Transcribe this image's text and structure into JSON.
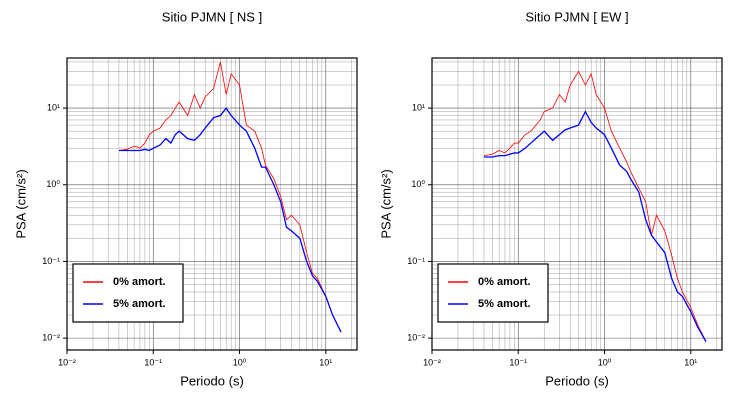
{
  "chart_data": [
    {
      "type": "line",
      "title": "Sitio PJMN [ NS ]",
      "x_label": "Periodo (s)",
      "y_label": "PSA (cm/s²)",
      "log_x": true,
      "log_y": true,
      "grid": true,
      "legend": "lower left",
      "xlim": [
        0.01,
        23
      ],
      "ylim": [
        0.007,
        45
      ],
      "xticks": [
        {
          "value": 0.01,
          "label": "10⁻²"
        },
        {
          "value": 0.1,
          "label": "10⁻¹"
        },
        {
          "value": 1,
          "label": "10⁰"
        },
        {
          "value": 10,
          "label": "10¹"
        }
      ],
      "yticks": [
        {
          "value": 0.01,
          "label": "10⁻²"
        },
        {
          "value": 0.1,
          "label": "10⁻¹"
        },
        {
          "value": 1,
          "label": "10⁰"
        },
        {
          "value": 10,
          "label": "10¹"
        }
      ],
      "x": [
        0.04,
        0.05,
        0.06,
        0.07,
        0.08,
        0.09,
        0.1,
        0.12,
        0.14,
        0.16,
        0.18,
        0.2,
        0.25,
        0.3,
        0.35,
        0.4,
        0.5,
        0.6,
        0.7,
        0.8,
        1.0,
        1.2,
        1.5,
        1.8,
        2.0,
        2.5,
        3,
        3.5,
        4,
        5,
        6,
        7,
        8,
        10,
        12,
        15
      ],
      "series": [
        {
          "name": "0% amort.",
          "color": "#ff0000",
          "values": [
            2.8,
            2.9,
            3.2,
            3.0,
            3.5,
            4.5,
            5,
            5.5,
            7,
            8,
            10,
            12,
            8,
            15,
            10,
            14,
            18,
            40,
            15,
            28,
            20,
            6,
            5,
            3,
            1.8,
            1.2,
            0.7,
            0.35,
            0.4,
            0.3,
            0.13,
            0.07,
            0.06,
            0.035,
            0.02,
            0.012
          ]
        },
        {
          "name": "5% amort.",
          "color": "#0000ff",
          "values": [
            2.8,
            2.8,
            2.8,
            2.8,
            2.9,
            2.8,
            3.0,
            3.3,
            4.0,
            3.5,
            4.5,
            5.0,
            4.0,
            3.8,
            4.5,
            5.5,
            7.5,
            8,
            10,
            8,
            6,
            5,
            3,
            1.7,
            1.7,
            1.0,
            0.6,
            0.28,
            0.25,
            0.2,
            0.1,
            0.065,
            0.055,
            0.035,
            0.02,
            0.012
          ]
        }
      ]
    },
    {
      "type": "line",
      "title": "Sitio PJMN [ EW ]",
      "x_label": "Periodo (s)",
      "y_label": "PSA (cm/s²)",
      "log_x": true,
      "log_y": true,
      "grid": true,
      "legend": "lower left",
      "xlim": [
        0.01,
        23
      ],
      "ylim": [
        0.007,
        45
      ],
      "xticks": [
        {
          "value": 0.01,
          "label": "10⁻²"
        },
        {
          "value": 0.1,
          "label": "10⁻¹"
        },
        {
          "value": 1,
          "label": "10⁰"
        },
        {
          "value": 10,
          "label": "10¹"
        }
      ],
      "yticks": [
        {
          "value": 0.01,
          "label": "10⁻²"
        },
        {
          "value": 0.1,
          "label": "10⁻¹"
        },
        {
          "value": 1,
          "label": "10⁰"
        },
        {
          "value": 10,
          "label": "10¹"
        }
      ],
      "x": [
        0.04,
        0.05,
        0.06,
        0.07,
        0.08,
        0.09,
        0.1,
        0.12,
        0.14,
        0.16,
        0.18,
        0.2,
        0.25,
        0.3,
        0.35,
        0.4,
        0.5,
        0.6,
        0.7,
        0.8,
        1.0,
        1.2,
        1.5,
        1.8,
        2.0,
        2.5,
        3,
        3.5,
        4,
        5,
        6,
        7,
        8,
        10,
        12,
        15
      ],
      "series": [
        {
          "name": "0% amort.",
          "color": "#ff0000",
          "values": [
            2.4,
            2.5,
            2.8,
            2.6,
            3,
            3.5,
            3.5,
            4.5,
            5,
            6,
            7,
            9,
            10,
            15,
            12,
            20,
            30,
            20,
            28,
            15,
            10,
            5,
            3,
            2,
            1.5,
            0.9,
            0.6,
            0.22,
            0.4,
            0.25,
            0.12,
            0.06,
            0.04,
            0.025,
            0.015,
            0.009
          ]
        },
        {
          "name": "5% amort.",
          "color": "#0000ff",
          "values": [
            2.3,
            2.3,
            2.4,
            2.4,
            2.5,
            2.6,
            2.6,
            3.0,
            3.5,
            4,
            4.5,
            5,
            3.8,
            4.5,
            5.2,
            5.5,
            6,
            9,
            6.5,
            5.5,
            4.5,
            3,
            1.8,
            1.5,
            1.2,
            0.8,
            0.35,
            0.22,
            0.18,
            0.13,
            0.06,
            0.04,
            0.035,
            0.022,
            0.014,
            0.009
          ]
        }
      ]
    }
  ]
}
